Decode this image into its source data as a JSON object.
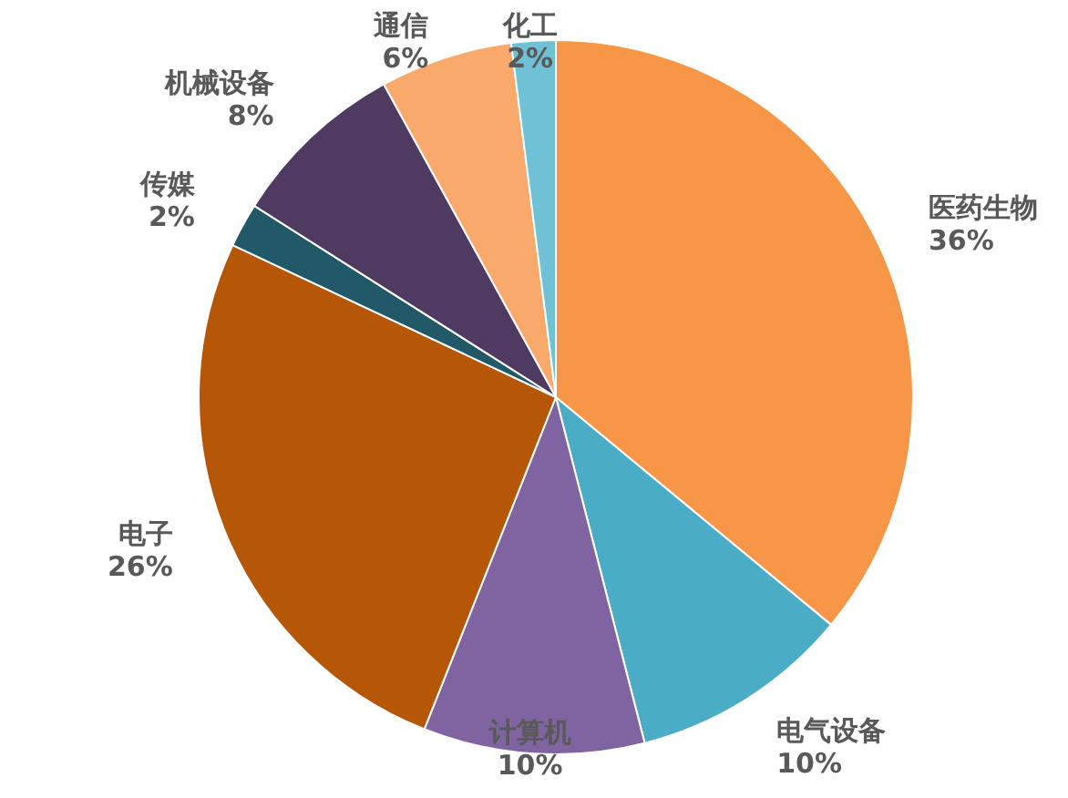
{
  "chart_data": {
    "type": "pie",
    "categories": [
      "医药生物",
      "电气设备",
      "计算机",
      "电子",
      "传媒",
      "机械设备",
      "通信",
      "化工"
    ],
    "values": [
      36,
      10,
      10,
      26,
      2,
      8,
      6,
      2
    ],
    "value_labels": [
      "36%",
      "10%",
      "10%",
      "26%",
      "2%",
      "8%",
      "6%",
      "2%"
    ],
    "colors": [
      "#f79646",
      "#4bacc6",
      "#8064a2",
      "#b65708",
      "#215968",
      "#4f3b62",
      "#f9a96b",
      "#6fc1d6"
    ]
  }
}
